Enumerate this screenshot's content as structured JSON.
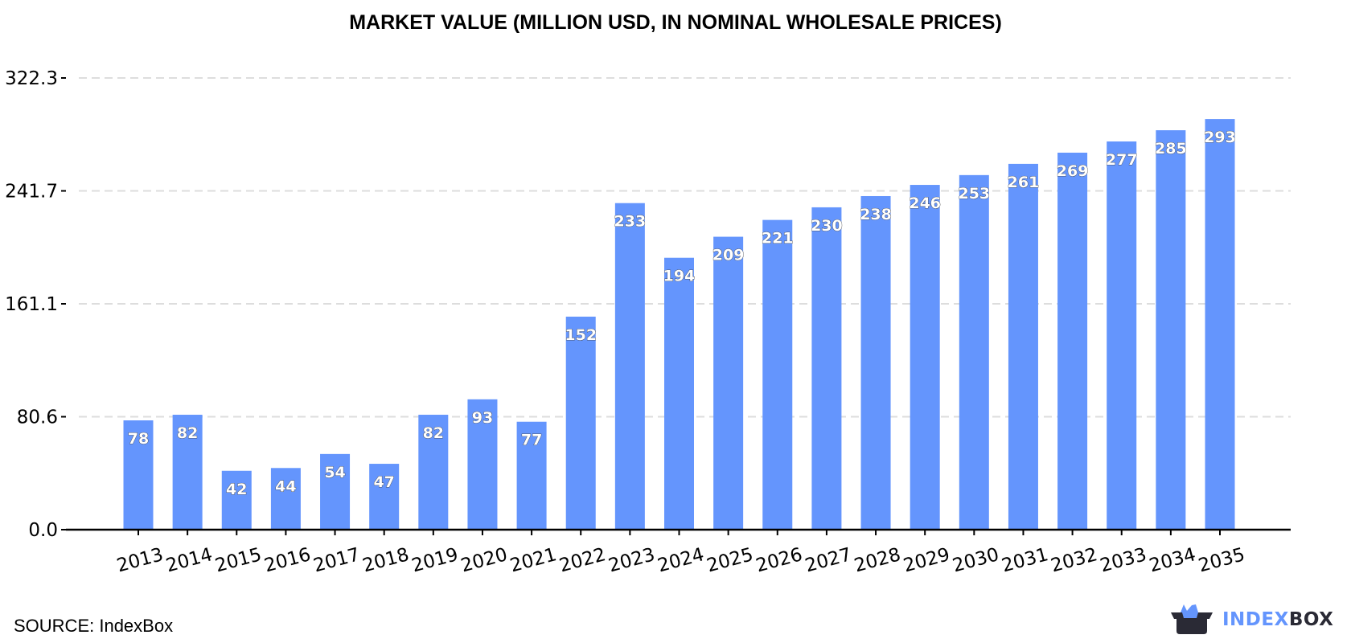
{
  "chart_data": {
    "type": "bar",
    "title": "MARKET VALUE (MILLION USD, IN NOMINAL WHOLESALE PRICES)",
    "xlabel": "",
    "ylabel": "",
    "categories": [
      "2013",
      "2014",
      "2015",
      "2016",
      "2017",
      "2018",
      "2019",
      "2020",
      "2021",
      "2022",
      "2023",
      "2024",
      "2025",
      "2026",
      "2027",
      "2028",
      "2029",
      "2030",
      "2031",
      "2032",
      "2033",
      "2034",
      "2035"
    ],
    "values": [
      78,
      82,
      42,
      44,
      54,
      47,
      82,
      93,
      77,
      152,
      233,
      194,
      209,
      221,
      230,
      238,
      246,
      253,
      261,
      269,
      277,
      285,
      293
    ],
    "ylim": [
      0,
      322.3
    ],
    "yticks": [
      "0.0",
      "80.6",
      "161.1",
      "241.7",
      "322.3"
    ],
    "grid": true,
    "bar_color": "#6495fd"
  },
  "footer": {
    "source": "SOURCE: IndexBox",
    "logo_text_a": "INDEX",
    "logo_text_b": "BOX",
    "logo_color_a": "#6495fd",
    "logo_color_b": "#2a2a35"
  }
}
